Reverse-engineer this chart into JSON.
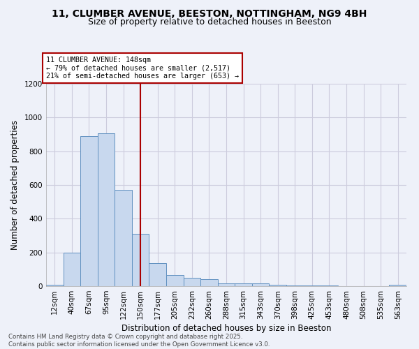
{
  "title_line1": "11, CLUMBER AVENUE, BEESTON, NOTTINGHAM, NG9 4BH",
  "title_line2": "Size of property relative to detached houses in Beeston",
  "xlabel": "Distribution of detached houses by size in Beeston",
  "ylabel": "Number of detached properties",
  "categories": [
    "12sqm",
    "40sqm",
    "67sqm",
    "95sqm",
    "122sqm",
    "150sqm",
    "177sqm",
    "205sqm",
    "232sqm",
    "260sqm",
    "288sqm",
    "315sqm",
    "343sqm",
    "370sqm",
    "398sqm",
    "425sqm",
    "453sqm",
    "480sqm",
    "508sqm",
    "535sqm",
    "563sqm"
  ],
  "values": [
    10,
    200,
    890,
    905,
    570,
    310,
    135,
    65,
    48,
    42,
    15,
    18,
    15,
    10,
    5,
    5,
    3,
    1,
    1,
    1,
    10
  ],
  "bar_color": "#c8d8ee",
  "bar_edge_color": "#6090c0",
  "vline_x": 5,
  "vline_color": "#aa0000",
  "annotation_text": "11 CLUMBER AVENUE: 148sqm\n← 79% of detached houses are smaller (2,517)\n21% of semi-detached houses are larger (653) →",
  "annotation_box_color": "#ffffff",
  "annotation_box_edge": "#aa0000",
  "ylim": [
    0,
    1200
  ],
  "yticks": [
    0,
    200,
    400,
    600,
    800,
    1000,
    1200
  ],
  "footer_text": "Contains HM Land Registry data © Crown copyright and database right 2025.\nContains public sector information licensed under the Open Government Licence v3.0.",
  "bg_color": "#eef1f9",
  "grid_color": "#ccccdd",
  "title_fontsize": 10,
  "subtitle_fontsize": 9,
  "axis_label_fontsize": 8.5,
  "tick_fontsize": 7.5
}
